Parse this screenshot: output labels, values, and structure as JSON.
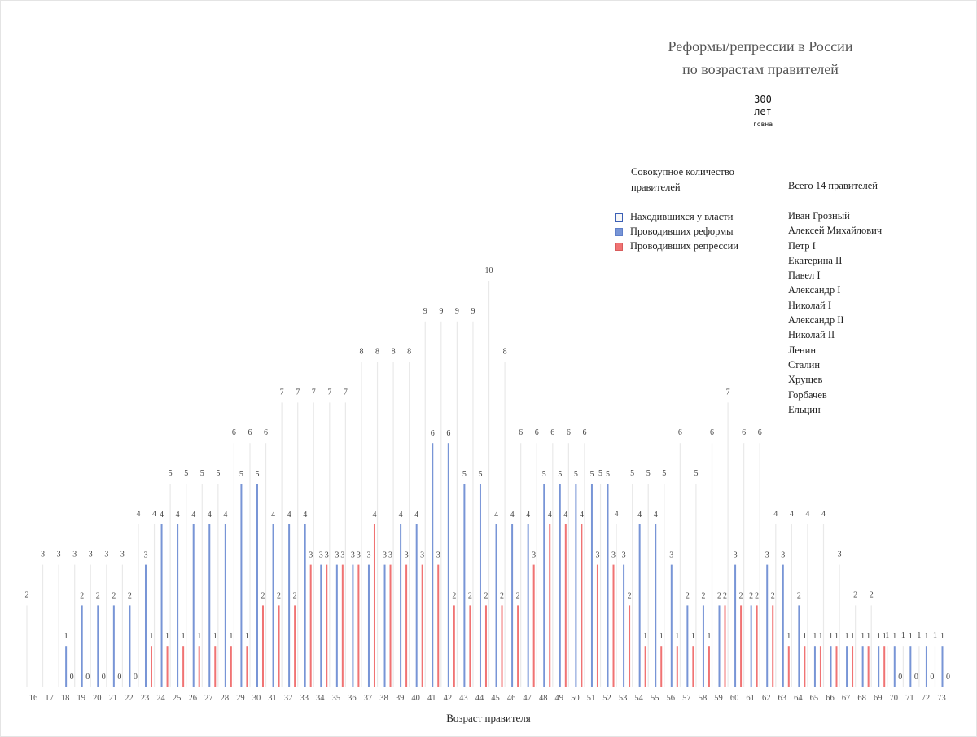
{
  "title_line1": "Реформы/репрессии в России",
  "title_line2": "по возрастам правителей",
  "stamp": {
    "line1": "300",
    "line2": "лет",
    "line3": "говна"
  },
  "legend": {
    "heading": "Совокупное количество правителей",
    "items": [
      {
        "label": "Находившихся у власти",
        "color": "#f2f2f2",
        "border": "#3b5fb5"
      },
      {
        "label": "Проводивших реформы",
        "color": "#7895d6",
        "border": "#5f7fc9"
      },
      {
        "label": "Проводивших репрессии",
        "color": "#f07373",
        "border": "#d85c5c"
      }
    ]
  },
  "rulers": {
    "heading": "Всего 14 правителей",
    "names": [
      "Иван Грозный",
      "Алексей Михайлович",
      "Петр I",
      "Екатерина II",
      "Павел I",
      "Александр I",
      "Николай I",
      "Александр II",
      "Николай II",
      "Ленин",
      "Сталин",
      "Хрущев",
      "Горбачев",
      "Ельцин"
    ]
  },
  "chart_data": {
    "type": "bar",
    "title": "Реформы/репрессии в России по возрастам правителей",
    "xlabel": "Возраст правителя",
    "ylabel": "",
    "ylim": [
      0,
      10
    ],
    "categories": [
      16,
      17,
      18,
      19,
      20,
      21,
      22,
      23,
      24,
      25,
      26,
      27,
      28,
      29,
      30,
      31,
      32,
      33,
      34,
      35,
      36,
      37,
      38,
      39,
      40,
      41,
      42,
      43,
      44,
      45,
      46,
      47,
      48,
      49,
      50,
      51,
      52,
      53,
      54,
      55,
      56,
      57,
      58,
      59,
      60,
      61,
      62,
      63,
      64,
      65,
      66,
      67,
      68,
      69,
      70,
      71,
      72,
      73
    ],
    "series": [
      {
        "name": "Находившихся у власти",
        "color": "#efefef",
        "values": [
          2,
          3,
          3,
          3,
          3,
          3,
          3,
          4,
          4,
          5,
          5,
          5,
          5,
          6,
          6,
          6,
          7,
          7,
          7,
          7,
          7,
          8,
          8,
          8,
          8,
          9,
          9,
          9,
          9,
          10,
          8,
          6,
          6,
          6,
          6,
          6,
          5,
          4,
          5,
          5,
          5,
          6,
          5,
          6,
          7,
          6,
          6,
          4,
          4,
          4,
          4,
          3,
          2,
          2,
          1,
          1,
          1,
          1
        ]
      },
      {
        "name": "Проводивших реформы",
        "color": "#7895d6",
        "values": [
          null,
          null,
          1,
          2,
          2,
          2,
          2,
          3,
          4,
          4,
          4,
          4,
          4,
          5,
          5,
          4,
          4,
          4,
          3,
          3,
          3,
          3,
          3,
          4,
          4,
          6,
          6,
          5,
          5,
          4,
          4,
          4,
          5,
          5,
          5,
          5,
          5,
          3,
          4,
          4,
          3,
          2,
          2,
          2,
          3,
          2,
          3,
          3,
          2,
          1,
          1,
          1,
          1,
          1,
          1,
          1,
          1,
          1
        ]
      },
      {
        "name": "Проводивших репрессии",
        "color": "#f07373",
        "values": [
          null,
          null,
          0,
          0,
          0,
          0,
          0,
          1,
          1,
          1,
          1,
          1,
          1,
          1,
          2,
          2,
          2,
          3,
          3,
          3,
          3,
          4,
          3,
          3,
          3,
          3,
          2,
          2,
          2,
          2,
          2,
          3,
          4,
          4,
          4,
          3,
          3,
          2,
          1,
          1,
          1,
          1,
          1,
          2,
          2,
          2,
          2,
          1,
          1,
          1,
          1,
          1,
          1,
          1,
          0,
          0,
          0,
          0
        ]
      }
    ]
  }
}
